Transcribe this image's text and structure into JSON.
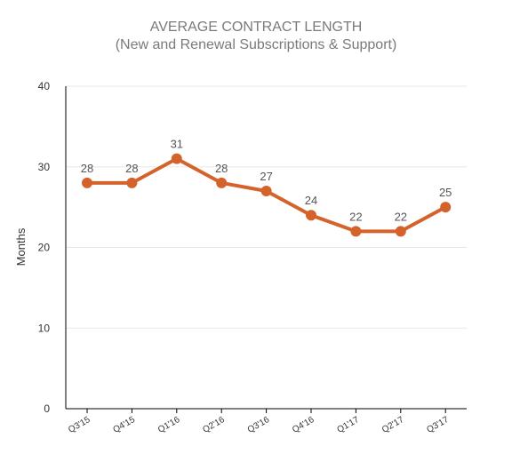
{
  "chart_data": {
    "type": "line",
    "title": "AVERAGE CONTRACT LENGTH",
    "subtitle": "(New and Renewal Subscriptions & Support)",
    "ylabel": "Months",
    "xlabel": "",
    "categories": [
      "Q3'15",
      "Q4'15",
      "Q1'16",
      "Q2'16",
      "Q3'16",
      "Q4'16",
      "Q1'17",
      "Q2'17",
      "Q3'17"
    ],
    "series": [
      {
        "values": [
          28,
          28,
          31,
          28,
          27,
          24,
          22,
          22,
          25
        ]
      }
    ],
    "ylim": [
      0,
      40
    ],
    "yticks": [
      0,
      10,
      20,
      30,
      40
    ],
    "grid": true,
    "colors": {
      "line": "#d4632b",
      "grid": "#e8e8e8",
      "axis": "#000000"
    }
  }
}
